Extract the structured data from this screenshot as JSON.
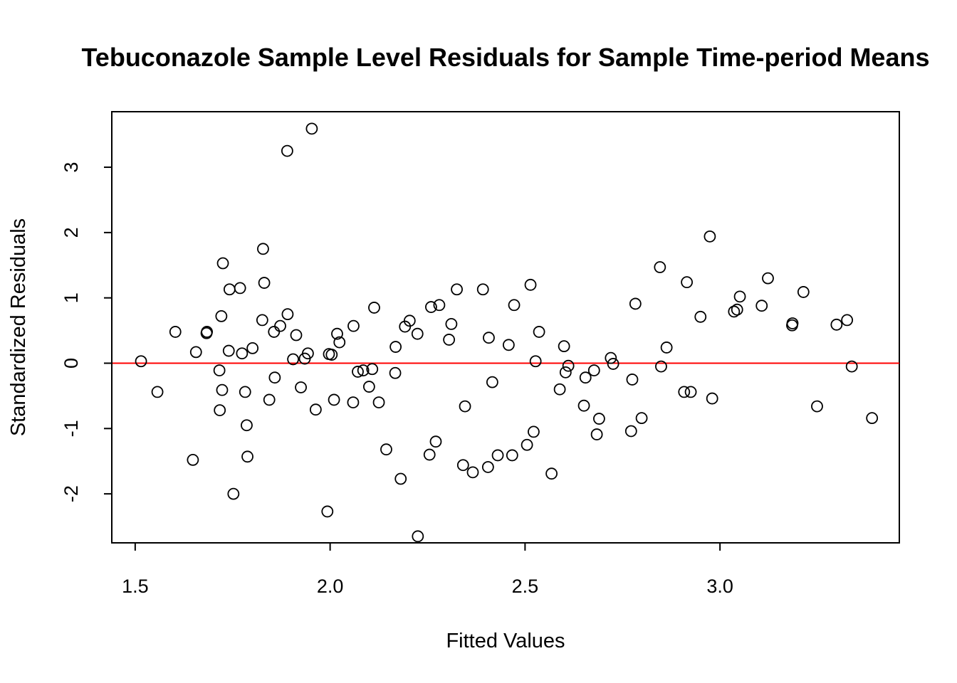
{
  "chart_data": {
    "type": "scatter",
    "title": "Tebuconazole Sample Level Residuals for Sample Time-period Means",
    "xlabel": "Fitted Values",
    "ylabel": "Standardized Residuals",
    "xlim": [
      1.44,
      3.46
    ],
    "ylim": [
      -2.75,
      3.85
    ],
    "xticks": [
      1.5,
      2.0,
      2.5,
      3.0
    ],
    "xtick_labels": [
      "1.5",
      "2.0",
      "2.5",
      "3.0"
    ],
    "yticks": [
      -2,
      -1,
      0,
      1,
      2,
      3
    ],
    "ytick_labels": [
      "-2",
      "-1",
      "0",
      "1",
      "2",
      "3"
    ],
    "grid": false,
    "legend": "none",
    "reference_line": {
      "y": 0,
      "color": "#ff0000"
    },
    "point_color": "#000000",
    "points": [
      [
        1.515,
        0.03
      ],
      [
        1.557,
        -0.44
      ],
      [
        1.603,
        0.48
      ],
      [
        1.648,
        -1.48
      ],
      [
        1.656,
        0.17
      ],
      [
        1.683,
        0.46
      ],
      [
        1.684,
        0.48
      ],
      [
        1.716,
        -0.11
      ],
      [
        1.717,
        -0.72
      ],
      [
        1.721,
        0.72
      ],
      [
        1.723,
        -0.41
      ],
      [
        1.725,
        1.53
      ],
      [
        1.74,
        0.19
      ],
      [
        1.742,
        1.13
      ],
      [
        1.752,
        -2.0
      ],
      [
        1.769,
        1.15
      ],
      [
        1.774,
        0.15
      ],
      [
        1.782,
        -0.44
      ],
      [
        1.786,
        -0.95
      ],
      [
        1.788,
        -1.43
      ],
      [
        1.801,
        0.23
      ],
      [
        1.826,
        0.66
      ],
      [
        1.828,
        1.75
      ],
      [
        1.831,
        1.23
      ],
      [
        1.844,
        -0.56
      ],
      [
        1.856,
        0.48
      ],
      [
        1.858,
        -0.22
      ],
      [
        1.872,
        0.57
      ],
      [
        1.89,
        3.25
      ],
      [
        1.891,
        0.75
      ],
      [
        1.905,
        0.06
      ],
      [
        1.913,
        0.43
      ],
      [
        1.925,
        -0.37
      ],
      [
        1.935,
        0.07
      ],
      [
        1.943,
        0.15
      ],
      [
        1.953,
        3.59
      ],
      [
        1.963,
        -0.71
      ],
      [
        1.993,
        -2.27
      ],
      [
        1.997,
        0.14
      ],
      [
        2.004,
        0.13
      ],
      [
        2.01,
        -0.56
      ],
      [
        2.018,
        0.45
      ],
      [
        2.024,
        0.32
      ],
      [
        2.059,
        -0.6
      ],
      [
        2.06,
        0.57
      ],
      [
        2.071,
        -0.13
      ],
      [
        2.085,
        -0.11
      ],
      [
        2.1,
        -0.36
      ],
      [
        2.108,
        -0.09
      ],
      [
        2.113,
        0.85
      ],
      [
        2.125,
        -0.6
      ],
      [
        2.144,
        -1.32
      ],
      [
        2.167,
        -0.15
      ],
      [
        2.168,
        0.25
      ],
      [
        2.181,
        -1.77
      ],
      [
        2.192,
        0.56
      ],
      [
        2.204,
        0.65
      ],
      [
        2.224,
        0.45
      ],
      [
        2.225,
        -2.65
      ],
      [
        2.255,
        -1.4
      ],
      [
        2.259,
        0.86
      ],
      [
        2.271,
        -1.2
      ],
      [
        2.28,
        0.89
      ],
      [
        2.305,
        0.36
      ],
      [
        2.311,
        0.6
      ],
      [
        2.325,
        1.13
      ],
      [
        2.341,
        -1.56
      ],
      [
        2.346,
        -0.66
      ],
      [
        2.366,
        -1.67
      ],
      [
        2.392,
        1.13
      ],
      [
        2.405,
        -1.59
      ],
      [
        2.407,
        0.39
      ],
      [
        2.416,
        -0.29
      ],
      [
        2.43,
        -1.41
      ],
      [
        2.458,
        0.28
      ],
      [
        2.467,
        -1.41
      ],
      [
        2.472,
        0.89
      ],
      [
        2.505,
        -1.25
      ],
      [
        2.514,
        1.2
      ],
      [
        2.522,
        -1.05
      ],
      [
        2.527,
        0.03
      ],
      [
        2.536,
        0.48
      ],
      [
        2.568,
        -1.69
      ],
      [
        2.589,
        -0.4
      ],
      [
        2.6,
        0.26
      ],
      [
        2.604,
        -0.14
      ],
      [
        2.611,
        -0.04
      ],
      [
        2.651,
        -0.65
      ],
      [
        2.655,
        -0.22
      ],
      [
        2.677,
        -0.11
      ],
      [
        2.684,
        -1.09
      ],
      [
        2.69,
        -0.85
      ],
      [
        2.72,
        0.08
      ],
      [
        2.726,
        -0.01
      ],
      [
        2.772,
        -1.04
      ],
      [
        2.775,
        -0.25
      ],
      [
        2.783,
        0.91
      ],
      [
        2.799,
        -0.84
      ],
      [
        2.846,
        1.47
      ],
      [
        2.849,
        -0.05
      ],
      [
        2.863,
        0.24
      ],
      [
        2.908,
        -0.44
      ],
      [
        2.915,
        1.24
      ],
      [
        2.925,
        -0.44
      ],
      [
        2.95,
        0.71
      ],
      [
        2.974,
        1.94
      ],
      [
        2.98,
        -0.54
      ],
      [
        3.036,
        0.79
      ],
      [
        3.044,
        0.82
      ],
      [
        3.051,
        1.02
      ],
      [
        3.107,
        0.88
      ],
      [
        3.123,
        1.3
      ],
      [
        3.185,
        0.58
      ],
      [
        3.186,
        0.61
      ],
      [
        3.214,
        1.09
      ],
      [
        3.249,
        -0.66
      ],
      [
        3.299,
        0.59
      ],
      [
        3.326,
        0.66
      ],
      [
        3.338,
        -0.05
      ],
      [
        3.39,
        -0.84
      ]
    ]
  }
}
